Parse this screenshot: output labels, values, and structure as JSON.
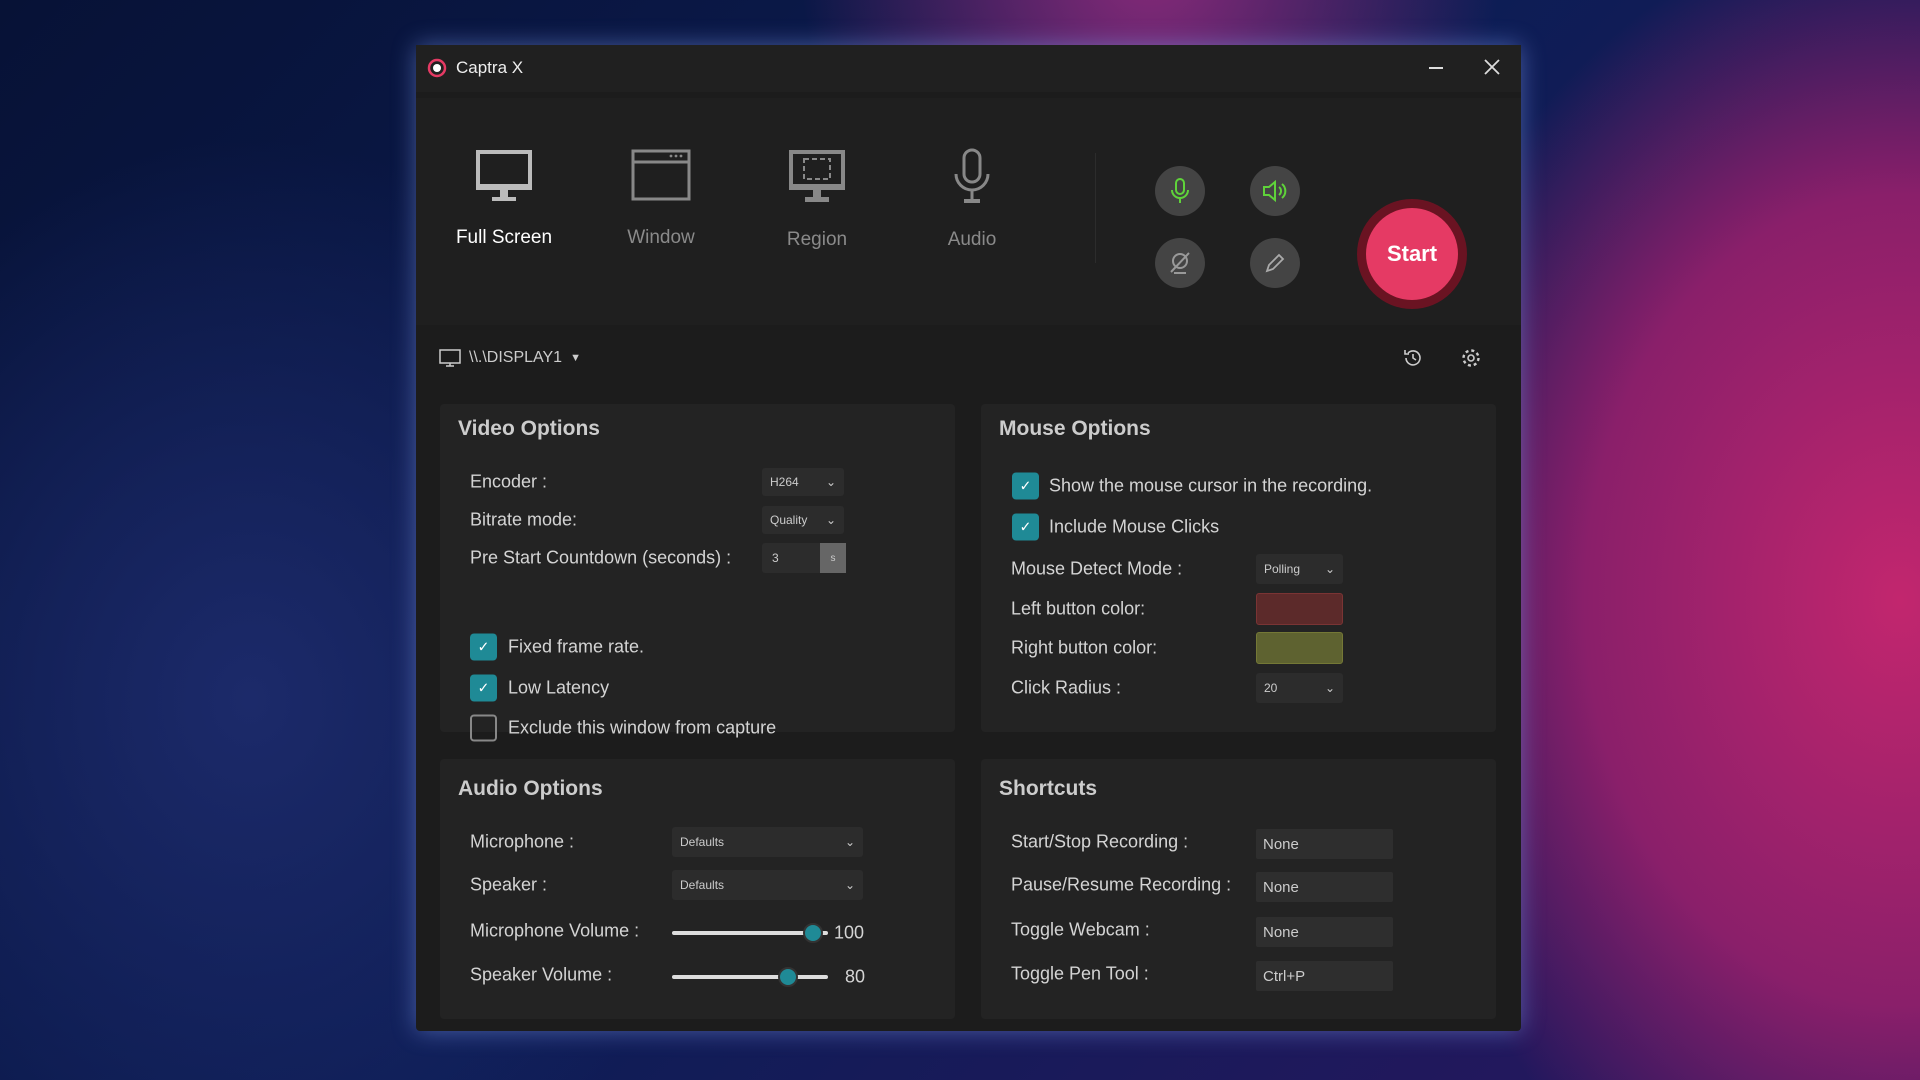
{
  "app": {
    "title": "Captra X",
    "logo_icon": "record-logo-icon",
    "minimize_icon": "minimize-icon",
    "close_icon": "close-icon"
  },
  "modes": [
    {
      "label": "Full Screen",
      "icon": "monitor-icon",
      "active": true
    },
    {
      "label": "Window",
      "icon": "window-icon"
    },
    {
      "label": "Region",
      "icon": "region-icon"
    },
    {
      "label": "Audio",
      "icon": "microphone-icon"
    }
  ],
  "quick": [
    "microphone-toggle",
    "speaker-toggle",
    "webcam-off",
    "pen-tool"
  ],
  "start_label": "Start",
  "display": {
    "value": "\\\\.\\DISPLAY1"
  },
  "colors": {
    "accent": "#1f8a96",
    "start": "#e53a64",
    "green": "#5fd33a",
    "left_button": "#5c2a2a",
    "right_button": "#5e6230"
  },
  "video": {
    "title": "Video Options",
    "encoder_label": "Encoder :",
    "encoder": "H264",
    "bitrate_label": "Bitrate mode:",
    "bitrate": "Quality",
    "countdown_label": "Pre Start Countdown (seconds) :",
    "countdown": "3",
    "countdown_unit": "s",
    "fixed_frame": "Fixed frame rate.",
    "fixed_frame_checked": true,
    "low_latency": "Low Latency",
    "low_latency_checked": true,
    "exclude": "Exclude this window from capture",
    "exclude_checked": false
  },
  "mouse": {
    "title": "Mouse Options",
    "show_cursor": "Show the mouse cursor in the recording.",
    "include_clicks": "Include Mouse Clicks",
    "detect_label": "Mouse Detect Mode :",
    "detect": "Polling",
    "left_label": "Left button color:",
    "right_label": "Right button color:",
    "radius_label": "Click Radius :",
    "radius": "20"
  },
  "audio": {
    "title": "Audio Options",
    "mic_label": "Microphone :",
    "mic": "Defaults",
    "spk_label": "Speaker :",
    "spk": "Defaults",
    "mic_vol_label": "Microphone Volume :",
    "mic_vol": "100",
    "spk_vol_label": "Speaker Volume :",
    "spk_vol": "80"
  },
  "shortcuts": {
    "title": "Shortcuts",
    "items": [
      {
        "label": "Start/Stop Recording :",
        "value": "None"
      },
      {
        "label": "Pause/Resume Recording :",
        "value": "None"
      },
      {
        "label": "Toggle Webcam :",
        "value": "None"
      },
      {
        "label": "Toggle Pen Tool :",
        "value": "Ctrl+P"
      }
    ]
  }
}
